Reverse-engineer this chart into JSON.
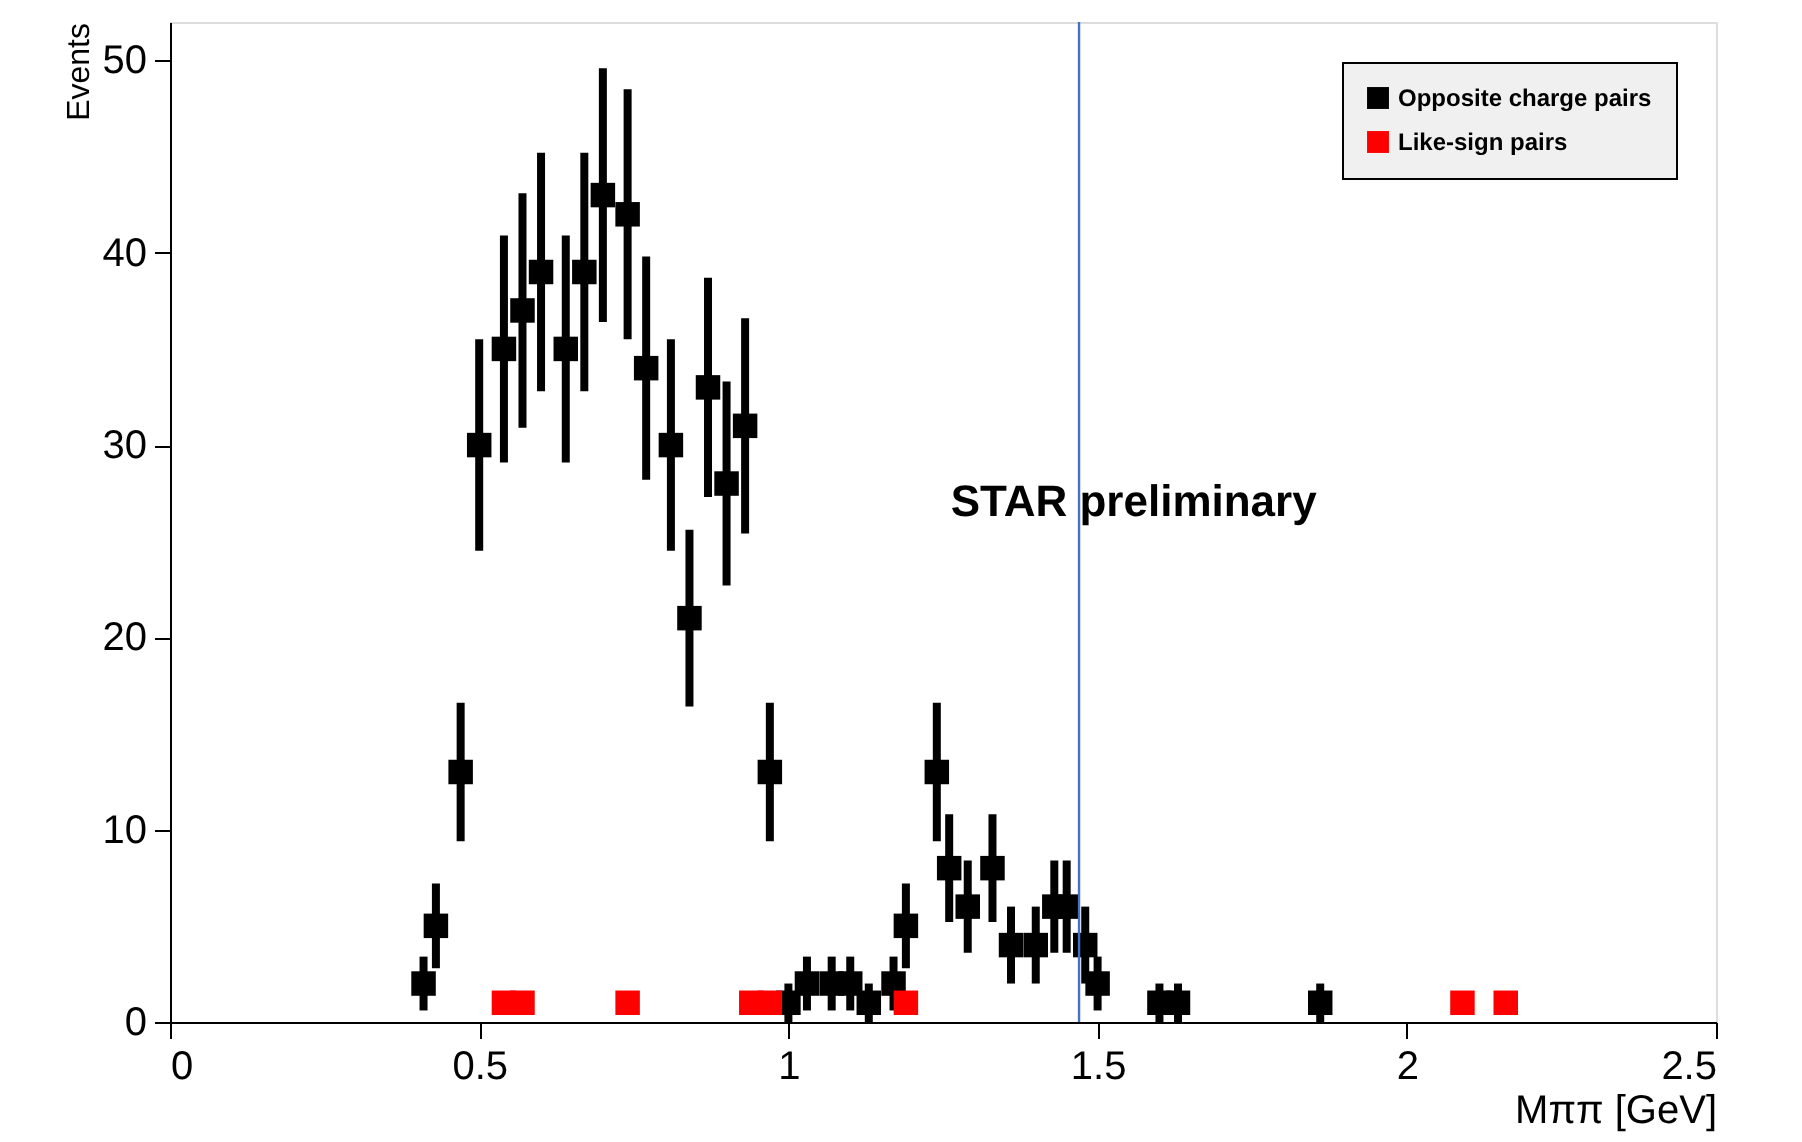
{
  "chart_data": {
    "type": "scatter",
    "xlabel": "Mππ [GeV]",
    "ylabel": "Events",
    "xlim": [
      0,
      2.5
    ],
    "xticks": [
      0,
      0.5,
      1,
      1.5,
      2,
      2.5
    ],
    "ylim": [
      0,
      52
    ],
    "yticks": [
      0,
      10,
      20,
      30,
      40,
      50
    ],
    "grid": false,
    "legend": "top right",
    "marker": "square",
    "annotations": [
      "STAR preliminary"
    ],
    "ref_lines": [
      {
        "axis": "x",
        "value": 1.47,
        "label": null,
        "color": "#4472c4"
      }
    ],
    "series": [
      {
        "name": "Opposite charge pairs",
        "color": "#000000",
        "x": [
          0.41,
          0.43,
          0.47,
          0.5,
          0.54,
          0.57,
          0.6,
          0.64,
          0.67,
          0.7,
          0.74,
          0.77,
          0.81,
          0.84,
          0.87,
          0.9,
          0.93,
          0.97,
          1.0,
          1.03,
          1.07,
          1.1,
          1.13,
          1.17,
          1.19,
          1.24,
          1.26,
          1.29,
          1.33,
          1.36,
          1.4,
          1.43,
          1.45,
          1.48,
          1.5,
          1.6,
          1.63,
          1.86
        ],
        "values": [
          2,
          5,
          13,
          30,
          35,
          37,
          39,
          35,
          39,
          43,
          42,
          34,
          30,
          21,
          33,
          28,
          31,
          13,
          1,
          2,
          2,
          2,
          1,
          2,
          5,
          13,
          8,
          6,
          8,
          4,
          4,
          6,
          6,
          4,
          2,
          1,
          1,
          1
        ],
        "errors": [
          1.4,
          2.2,
          3.6,
          5.5,
          5.9,
          6.1,
          6.2,
          5.9,
          6.2,
          6.6,
          6.5,
          5.8,
          5.5,
          4.6,
          5.7,
          5.3,
          5.6,
          3.6,
          1,
          1.4,
          1.4,
          1.4,
          1,
          1.4,
          2.2,
          3.6,
          2.8,
          2.4,
          2.8,
          2,
          2,
          2.4,
          2.4,
          2,
          1.4,
          1,
          1,
          1
        ]
      },
      {
        "name": "Like-sign pairs",
        "color": "#ff0000",
        "x": [
          0.54,
          0.57,
          0.74,
          0.94,
          0.97,
          1.19,
          2.09,
          2.16
        ],
        "values": [
          1,
          1,
          1,
          1,
          1,
          1,
          1,
          1
        ]
      }
    ]
  }
}
